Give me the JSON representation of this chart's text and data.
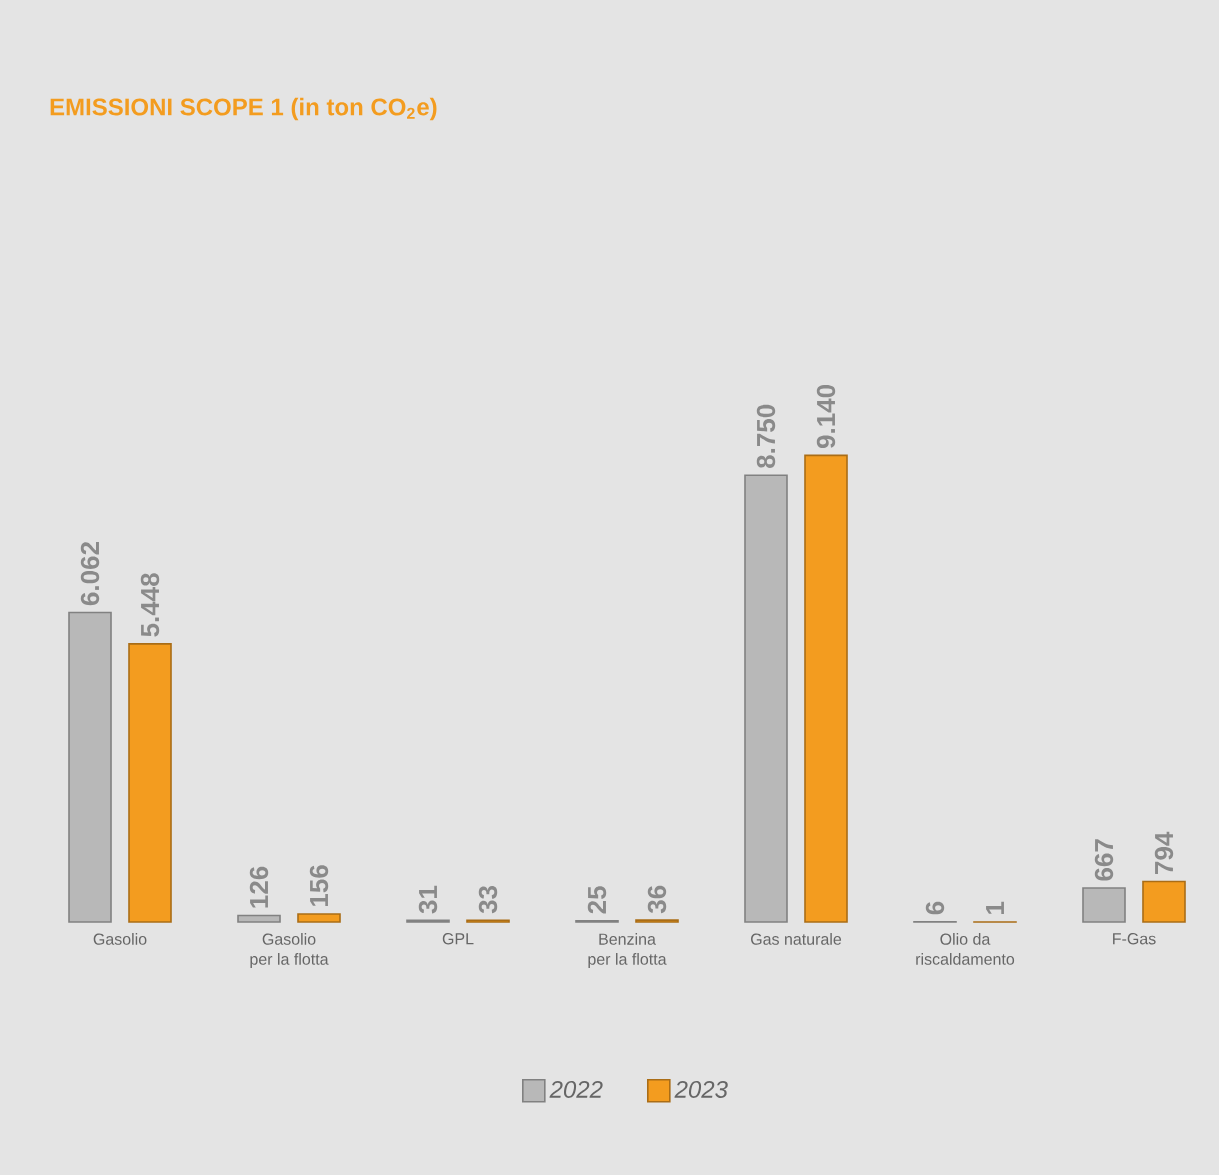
{
  "chart_data": {
    "type": "bar",
    "title": "EMISSIONI SCOPE 1 (in ton CO$_{2}$e)",
    "categories": [
      "Gasolio",
      "Gasolio\nper la flotta",
      "GPL",
      "Benzina\nper la flotta",
      "Gas naturale",
      "Olio da\nriscaldamento",
      "F-Gas"
    ],
    "series": [
      {
        "name": "2022",
        "color": "#b8b8b8",
        "values": [
          6062,
          126,
          31,
          25,
          8750,
          6,
          667
        ],
        "value_labels": [
          "6.062",
          "126",
          "31",
          "25",
          "8.750",
          "6",
          "667"
        ]
      },
      {
        "name": "2023",
        "color": "#f39c1f",
        "values": [
          5448,
          156,
          33,
          36,
          9140,
          1,
          794
        ],
        "value_labels": [
          "5.448",
          "156",
          "33",
          "36",
          "9.140",
          "1",
          "794"
        ]
      }
    ],
    "legend": "bottom"
  }
}
